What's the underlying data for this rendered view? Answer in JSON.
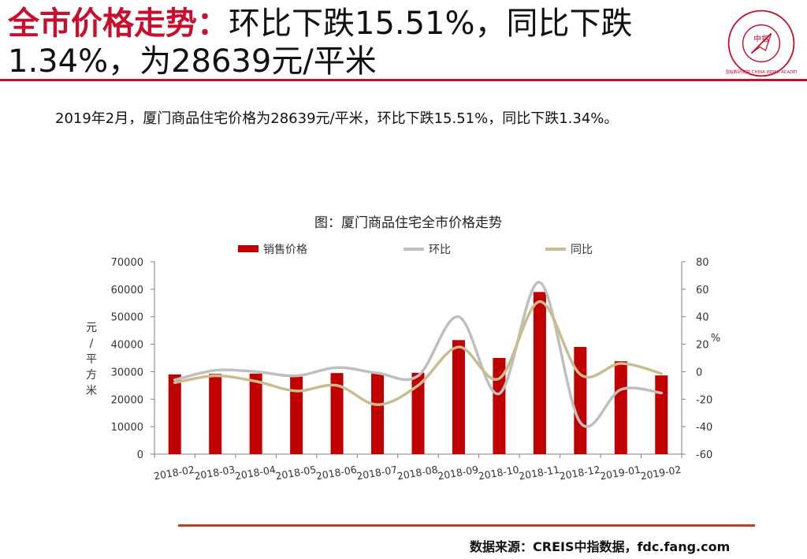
{
  "title": {
    "accent": "全市价格走势：",
    "rest": "环比下跌15.51%，同比下跌1.34%，为28639元/平米"
  },
  "logo": {
    "center": "中指",
    "ring_text": "中国指数研究院 CHINA INDEX ACADEMY",
    "color": "#c8102e"
  },
  "summary": "2019年2月，厦门商品住宅价格为28639元/平米，环比下跌15.51%，同比下跌1.34%。",
  "chart_data": {
    "type": "bar",
    "title": "图：厦门商品住宅全市价格走势",
    "categories": [
      "2018-02",
      "2018-03",
      "2018-04",
      "2018-05",
      "2018-06",
      "2018-07",
      "2018-08",
      "2018-09",
      "2018-10",
      "2018-11",
      "2018-12",
      "2019-01",
      "2019-02"
    ],
    "ylabel": "元/平方米",
    "y2label": "%",
    "ylim": [
      0,
      70000
    ],
    "y2lim": [
      -60,
      80
    ],
    "yticks": [
      "0",
      "10000",
      "20000",
      "30000",
      "40000",
      "50000",
      "60000",
      "70000"
    ],
    "y2ticks": [
      "-60",
      "-40",
      "-20",
      "0",
      "20",
      "40",
      "60",
      "80"
    ],
    "legend_position": "top",
    "series": [
      {
        "name": "销售价格",
        "kind": "bar",
        "axis": "left",
        "color": "#c00000",
        "values": [
          29000,
          29200,
          29300,
          28200,
          29500,
          29500,
          29600,
          41500,
          35000,
          59000,
          39000,
          33800,
          28639
        ]
      },
      {
        "name": "环比",
        "kind": "line",
        "axis": "right",
        "color": "#bfbfbf",
        "values": [
          -6,
          1,
          0,
          -3,
          3,
          -1,
          -3,
          40,
          -16,
          65,
          -37,
          -13,
          -15.51
        ]
      },
      {
        "name": "同比",
        "kind": "line",
        "axis": "right",
        "color": "#c9bd8f",
        "values": [
          -8,
          -3,
          -7,
          -14,
          -10,
          -24,
          -10,
          18,
          -5,
          51,
          -2,
          6,
          -1.34
        ]
      }
    ]
  },
  "source": "数据来源：CREIS中指数据，fdc.fang.com"
}
